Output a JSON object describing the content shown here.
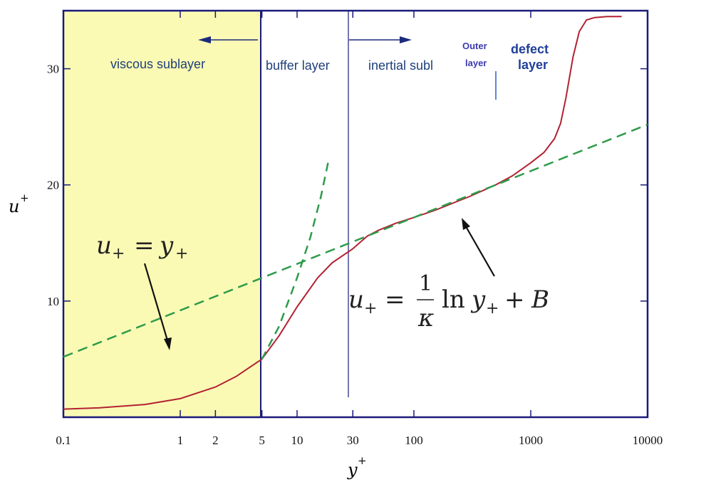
{
  "chart_data": {
    "type": "line",
    "xscale": "log",
    "xlim": [
      0.1,
      10000
    ],
    "ylim": [
      0,
      35
    ],
    "x_ticks": [
      "0.1",
      "1",
      "2",
      "5",
      "10",
      "30",
      "100",
      "1000",
      "10000"
    ],
    "y_ticks": [
      "10",
      "20",
      "30"
    ],
    "xlabel": "y",
    "xlabel_sup": "+",
    "ylabel": "u",
    "ylabel_sup": "+",
    "regions": {
      "viscous": "viscous sublayer",
      "buffer": "buffer layer",
      "inertial": "inertial subl",
      "outer_1": "Outer",
      "outer_2": "layer",
      "defect_1": "defect",
      "defect_2": "layer"
    },
    "equations": {
      "linear_lhs": "u",
      "linear_lhs_sub": "+",
      "linear_eq": "=",
      "linear_rhs": "y",
      "linear_rhs_sub": "+",
      "log_lhs": "u",
      "log_lhs_sub": "+",
      "log_eq": "=",
      "log_num": "1",
      "log_den": "κ",
      "log_ln": "ln",
      "log_y": "y",
      "log_y_sub": "+",
      "log_plus": "+",
      "log_B": "B"
    },
    "colors": {
      "frame": "#1a1a7a",
      "viscous_fill": "#fafab4",
      "profile": "#b22233",
      "dashed": "#2e9b4a",
      "region_text": "#1f3f7a",
      "outer_text": "#3a3ab0",
      "defect_text": "#1f3f9a",
      "arrow": "#1a2a7a",
      "separator_outer": "#5a8ad0"
    },
    "series": [
      {
        "x": [
          0.1,
          0.2,
          0.5,
          1,
          2,
          3,
          5,
          7,
          10,
          15,
          20,
          30,
          40,
          50,
          70,
          100,
          150,
          200,
          300,
          500,
          700,
          1000,
          1300,
          1600,
          1800,
          2000,
          2300,
          2600,
          3000,
          3500,
          4500,
          6000
        ],
        "y": [
          0.7,
          0.8,
          1.1,
          1.6,
          2.6,
          3.5,
          5.0,
          7.0,
          9.5,
          12.0,
          13.3,
          14.5,
          15.6,
          16.1,
          16.7,
          17.2,
          17.8,
          18.3,
          19.0,
          20.0,
          20.8,
          21.9,
          22.8,
          24.0,
          25.3,
          27.5,
          31.0,
          33.2,
          34.2,
          34.4,
          34.5,
          34.5
        ]
      },
      {
        "x": [
          0.1,
          10000
        ],
        "y": [
          5.2,
          25.2
        ]
      },
      {
        "x": [
          5,
          7,
          10,
          13,
          16,
          18.5
        ],
        "y": [
          5.0,
          7.8,
          12.0,
          15.5,
          19.0,
          22.0
        ]
      }
    ]
  }
}
